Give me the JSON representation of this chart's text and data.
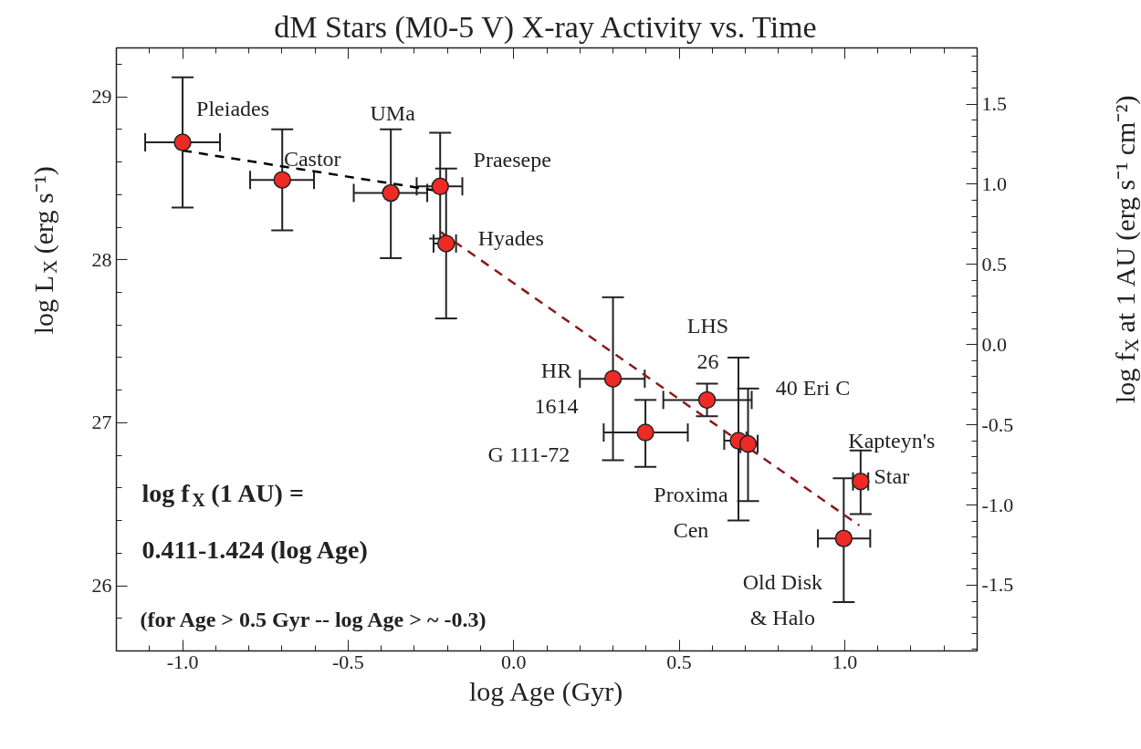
{
  "chart_data": {
    "type": "scatter",
    "title": "dM Stars (M0-5 V) X-ray Activity vs. Time",
    "xlabel": "log Age (Gyr)",
    "ylabel": "log L$_{X}$ (erg s⁻¹)",
    "y2label": "log f$_{X}$ at 1 AU (erg s⁻¹ cm⁻²)",
    "xlim": [
      -1.2,
      1.4
    ],
    "ylim": [
      25.6,
      29.3
    ],
    "y2lim": [
      -1.91,
      1.85
    ],
    "xticks": [
      {
        "value": -1.0,
        "label": "-1.0"
      },
      {
        "value": -0.5,
        "label": "-0.5"
      },
      {
        "value": 0,
        "label": "0.0"
      },
      {
        "value": 0.5,
        "label": "0.5"
      },
      {
        "value": 1.0,
        "label": "1.0"
      }
    ],
    "yticks": [
      26,
      27,
      28,
      29
    ],
    "y2ticks": [
      {
        "value": -1.5,
        "label": "-1.5"
      },
      {
        "value": -1.0,
        "label": "-1.0"
      },
      {
        "value": -0.5,
        "label": "-0.5"
      },
      {
        "value": 0,
        "label": "0.0"
      },
      {
        "value": 0.5,
        "label": "0.5"
      },
      {
        "value": 1.0,
        "label": "1.0"
      },
      {
        "value": 1.5,
        "label": "1.5"
      }
    ],
    "grid": false,
    "series": [
      {
        "type": "scatter",
        "color": "#ee2a24",
        "marker": "circle",
        "x": [
          -1.0,
          -0.699,
          -0.371,
          -0.222,
          -0.204,
          0.3,
          0.398,
          0.584,
          0.679,
          0.708,
          1.048,
          0.997
        ],
        "values": [
          28.72,
          28.49,
          28.41,
          28.45,
          28.1,
          27.27,
          26.94,
          27.14,
          26.89,
          26.87,
          26.64,
          26.29
        ],
        "errors": [
          [
            28.32,
            29.12
          ],
          [
            28.18,
            28.8
          ],
          [
            28.01,
            28.8
          ],
          [
            28.13,
            28.78
          ],
          [
            27.64,
            28.56
          ],
          [
            26.77,
            27.77
          ],
          [
            26.73,
            27.14
          ],
          [
            27.04,
            27.24
          ],
          [
            26.4,
            27.4
          ],
          [
            26.52,
            27.21
          ],
          [
            26.44,
            26.83
          ],
          [
            25.9,
            26.66
          ]
        ],
        "xerrors": [
          [
            -1.113,
            -0.887
          ],
          [
            -0.796,
            -0.603
          ],
          [
            -0.483,
            -0.261
          ],
          [
            -0.293,
            -0.155
          ],
          [
            -0.242,
            -0.174
          ],
          [
            0.2,
            0.396
          ],
          [
            0.272,
            0.526
          ],
          [
            0.452,
            0.719
          ],
          [
            0.636,
            0.703
          ],
          [
            0.685,
            0.737
          ],
          [
            1.025,
            1.071
          ],
          [
            0.919,
            1.077
          ]
        ]
      },
      {
        "type": "line",
        "color": "#000000",
        "line_style": "dashed",
        "marker": "none",
        "x": [
          -1.0,
          -0.22
        ],
        "values": [
          28.67,
          28.42
        ]
      },
      {
        "type": "line",
        "color": "#8b1a1a",
        "line_style": "dashed",
        "marker": "none",
        "x": [
          -0.22,
          1.044
        ],
        "values": [
          28.17,
          26.37
        ]
      }
    ],
    "annotations": [
      {
        "text": "Pleiades",
        "x": -1.0,
        "y": 28.72
      },
      {
        "text": "Castor",
        "x": -0.699,
        "y": 28.49
      },
      {
        "text": "UMa",
        "x": -0.371,
        "y": 28.8
      },
      {
        "text": "Praesepe",
        "x": -0.222,
        "y": 28.45
      },
      {
        "text": "Hyades",
        "x": -0.204,
        "y": 28.1
      },
      {
        "text": "HR\n1614",
        "x": 0.3,
        "y": 27.27
      },
      {
        "text": "G 111-72",
        "x": 0.272,
        "y": 26.94
      },
      {
        "text": "LHS\n26",
        "x": 0.584,
        "y": 27.14
      },
      {
        "text": "40 Eri C",
        "x": 0.708,
        "y": 26.87
      },
      {
        "text": "Proxima\nCen",
        "x": 0.679,
        "y": 26.89
      },
      {
        "text": "Kapteyn's\nStar",
        "x": 1.048,
        "y": 26.64
      },
      {
        "text": "Old Disk\n& Halo",
        "x": 0.997,
        "y": 26.29
      },
      "log f$_{X}$ (1 AU) =",
      "0.411-1.424 (log Age)",
      "(for Age > 0.5 Gyr -- log Age > ~ -0.3)"
    ]
  }
}
